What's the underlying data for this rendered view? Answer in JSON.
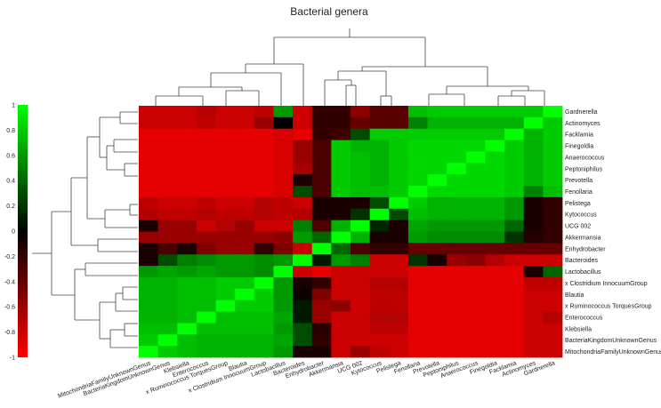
{
  "chart_data": {
    "type": "heatmap",
    "title": "Bacterial genera",
    "rows": [
      "Gardnerella",
      "Actinomyces",
      "Facklamia",
      "Finegoldia",
      "Anaerococcus",
      "Peptoniphilus",
      "Prevotella",
      "Fenollaria",
      "Pelistega",
      "Kytococcus",
      "UCG 002",
      "Akkermansia",
      "Enhydrobacter",
      "Bacteroides",
      "Lactobacillus",
      "x Clostridium InnocuumGroup",
      "Blautia",
      "x Ruminococcus TorquesGroup",
      "Enterococcus",
      "Klebsiella",
      "BacteriaKingdomUnknownGenus",
      "MitochondriaFamilyUnknownGenus"
    ],
    "columns": [
      "MitochondriaFamilyUnknownGenus",
      "BacteriaKingdomUnknownGenus",
      "Klebsiella",
      "Enterococcus",
      "x Ruminococcus TorquesGroup",
      "Blautia",
      "x Clostridium InnocuumGroup",
      "Lactobacillus",
      "Bacteroides",
      "Enhydrobacter",
      "Akkermansia",
      "UCG 002",
      "Kytococcus",
      "Pelistega",
      "Fenollaria",
      "Prevotella",
      "Peptoniphilus",
      "Anaerococcus",
      "Finegoldia",
      "Facklamia",
      "Actinomyces",
      "Gardnerella"
    ],
    "colorbar": {
      "range": [
        -1,
        1
      ],
      "ticks": [
        "1",
        "0.8",
        "0.6",
        "0.4",
        "0.2",
        "0",
        "-0.2",
        "-0.4",
        "-0.6",
        "-0.8",
        "-1"
      ],
      "low_color": "#ff0000",
      "mid_color": "#000000",
      "high_color": "#00ff00"
    },
    "values": [
      [
        -0.8,
        -0.8,
        -0.8,
        -0.7,
        -0.8,
        -0.8,
        -0.75,
        0.6,
        -0.8,
        -0.2,
        -0.2,
        -0.55,
        -0.35,
        -0.35,
        0.75,
        0.8,
        0.8,
        0.8,
        0.8,
        0.8,
        0.8,
        1
      ],
      [
        -0.8,
        -0.8,
        -0.8,
        -0.75,
        -0.8,
        -0.8,
        -0.6,
        0,
        -0.8,
        -0.2,
        -0.2,
        -0.4,
        -0.35,
        -0.35,
        0.5,
        0.7,
        0.7,
        0.7,
        0.7,
        0.7,
        1,
        0.8
      ],
      [
        -0.9,
        -0.9,
        -0.9,
        -0.9,
        -0.9,
        -0.9,
        -0.9,
        -0.85,
        -0.9,
        -0.2,
        -0.25,
        0.3,
        0.8,
        0.8,
        0.8,
        0.8,
        0.8,
        0.8,
        0.8,
        1,
        0.7,
        0.8
      ],
      [
        -0.9,
        -0.9,
        -0.9,
        -0.9,
        -0.9,
        -0.9,
        -0.9,
        -0.85,
        -0.6,
        -0.3,
        0.8,
        0.7,
        0.7,
        0.8,
        0.85,
        0.85,
        0.85,
        0.85,
        1,
        0.8,
        0.7,
        0.8
      ],
      [
        -0.9,
        -0.9,
        -0.9,
        -0.9,
        -0.9,
        -0.9,
        -0.9,
        -0.85,
        -0.6,
        -0.3,
        0.8,
        0.75,
        0.7,
        0.8,
        0.85,
        0.85,
        0.85,
        1,
        0.85,
        0.8,
        0.7,
        0.8
      ],
      [
        -0.9,
        -0.9,
        -0.9,
        -0.9,
        -0.9,
        -0.9,
        -0.9,
        -0.85,
        -0.65,
        -0.3,
        0.8,
        0.75,
        0.7,
        0.8,
        0.85,
        0.85,
        1,
        0.85,
        0.85,
        0.8,
        0.7,
        0.8
      ],
      [
        -0.9,
        -0.9,
        -0.9,
        -0.9,
        -0.9,
        -0.9,
        -0.9,
        -0.85,
        -0.1,
        -0.3,
        0.8,
        0.75,
        0.7,
        0.8,
        0.85,
        1,
        0.85,
        0.85,
        0.85,
        0.8,
        0.7,
        0.8
      ],
      [
        -0.9,
        -0.9,
        -0.9,
        -0.9,
        -0.9,
        -0.9,
        -0.9,
        -0.85,
        0.3,
        -0.3,
        0.8,
        0.75,
        0.75,
        0.8,
        1,
        0.85,
        0.85,
        0.85,
        0.85,
        0.8,
        0.5,
        0.75
      ],
      [
        -0.75,
        -0.8,
        -0.8,
        -0.75,
        -0.8,
        -0.8,
        -0.7,
        -0.75,
        -0.8,
        -0.1,
        -0.1,
        -0.1,
        0.3,
        1,
        0.8,
        0.7,
        0.7,
        0.7,
        0.7,
        0.6,
        -0.1,
        -0.2
      ],
      [
        -0.7,
        -0.75,
        -0.75,
        -0.7,
        -0.75,
        -0.75,
        -0.7,
        -0.75,
        -0.7,
        -0.1,
        -0.1,
        0.2,
        1,
        0.3,
        0.75,
        0.7,
        0.7,
        0.7,
        0.7,
        0.6,
        -0.1,
        -0.2
      ],
      [
        -0.1,
        -0.6,
        -0.6,
        -0.8,
        -0.7,
        -0.6,
        -0.8,
        -0.8,
        0.5,
        -0.3,
        0.7,
        1,
        0.15,
        -0.1,
        0.65,
        0.6,
        0.6,
        0.6,
        0.6,
        0.4,
        -0.1,
        -0.2
      ],
      [
        -0.6,
        -0.6,
        -0.6,
        -0.6,
        -0.6,
        -0.6,
        -0.6,
        -0.55,
        0.6,
        0.4,
        1,
        0.7,
        -0.1,
        -0.1,
        0.6,
        0.55,
        0.55,
        0.55,
        0.55,
        0.2,
        -0.15,
        -0.2
      ],
      [
        -0.1,
        -0.3,
        -0.1,
        -0.5,
        -0.6,
        -0.6,
        -0.2,
        -0.5,
        -0.8,
        1,
        0.4,
        -0.3,
        -0.2,
        -0.2,
        -0.4,
        -0.4,
        -0.4,
        -0.4,
        -0.4,
        -0.4,
        -0.4,
        -0.4
      ],
      [
        -0.1,
        0.3,
        0.5,
        0.55,
        0.6,
        0.6,
        0.55,
        0.6,
        1,
        0.1,
        0.6,
        0.5,
        -0.8,
        -0.8,
        0.2,
        -0.1,
        -0.6,
        -0.55,
        -0.7,
        -0.8,
        -0.8,
        -0.8
      ],
      [
        0.6,
        0.65,
        0.6,
        0.65,
        0.6,
        0.6,
        0.55,
        1,
        -0.8,
        -0.9,
        -0.8,
        -0.8,
        -0.8,
        -0.8,
        -0.9,
        -0.9,
        -0.9,
        -0.9,
        -0.9,
        -0.9,
        -0.1,
        0.4
      ],
      [
        0.7,
        0.7,
        0.75,
        0.75,
        0.8,
        0.8,
        1,
        0.6,
        -0.1,
        -0.2,
        -0.8,
        -0.8,
        -0.7,
        -0.7,
        -0.9,
        -0.9,
        -0.9,
        -0.9,
        -0.9,
        -0.9,
        -0.75,
        -0.75
      ],
      [
        0.7,
        0.7,
        0.75,
        0.75,
        0.8,
        1,
        0.8,
        0.6,
        -0.05,
        -0.5,
        -0.8,
        -0.8,
        -0.75,
        -0.75,
        -0.9,
        -0.9,
        -0.9,
        -0.9,
        -0.9,
        -0.9,
        -0.8,
        -0.8
      ],
      [
        0.7,
        0.7,
        0.75,
        0.75,
        1,
        0.8,
        0.8,
        0.6,
        0.1,
        -0.6,
        -0.55,
        -0.8,
        -0.75,
        -0.75,
        -0.9,
        -0.9,
        -0.9,
        -0.9,
        -0.9,
        -0.9,
        -0.8,
        -0.8
      ],
      [
        0.7,
        0.7,
        0.75,
        1,
        0.75,
        0.75,
        0.75,
        0.65,
        0.1,
        -0.6,
        -0.8,
        -0.8,
        -0.7,
        -0.7,
        -0.9,
        -0.9,
        -0.9,
        -0.9,
        -0.9,
        -0.9,
        -0.8,
        -0.7
      ],
      [
        0.75,
        0.75,
        1,
        0.75,
        0.75,
        0.75,
        0.75,
        0.6,
        0.3,
        -0.15,
        -0.8,
        -0.8,
        -0.75,
        -0.75,
        -0.9,
        -0.9,
        -0.9,
        -0.9,
        -0.9,
        -0.9,
        -0.8,
        -0.8
      ],
      [
        0.8,
        1,
        0.75,
        0.7,
        0.7,
        0.7,
        0.7,
        0.65,
        0.3,
        -0.2,
        -0.8,
        -0.8,
        -0.8,
        -0.8,
        -0.9,
        -0.9,
        -0.9,
        -0.9,
        -0.9,
        -0.9,
        -0.8,
        -0.8
      ],
      [
        1,
        0.8,
        0.75,
        0.7,
        0.7,
        0.7,
        0.7,
        0.6,
        -0.1,
        -0.1,
        -0.8,
        -0.6,
        -0.75,
        -0.8,
        -0.9,
        -0.9,
        -0.9,
        -0.9,
        -0.9,
        -0.9,
        -0.8,
        -0.8
      ]
    ]
  }
}
